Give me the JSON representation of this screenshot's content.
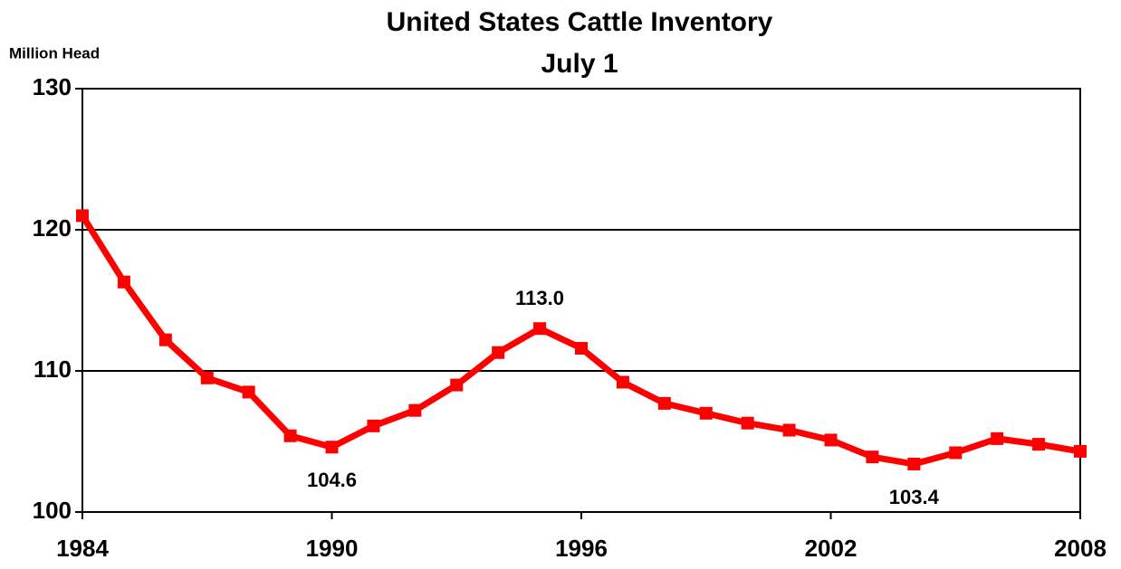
{
  "chart_data": {
    "type": "line",
    "title": "United States Cattle Inventory",
    "subtitle": "July 1",
    "y_label": "Million Head",
    "x": [
      1984,
      1985,
      1986,
      1987,
      1988,
      1989,
      1990,
      1991,
      1992,
      1993,
      1994,
      1995,
      1996,
      1997,
      1998,
      1999,
      2000,
      2001,
      2002,
      2003,
      2004,
      2005,
      2006,
      2007,
      2008
    ],
    "series": [
      {
        "name": "Cattle inventory",
        "color": "#ff0000",
        "values": [
          121.0,
          116.3,
          112.2,
          109.5,
          108.5,
          105.4,
          104.6,
          106.1,
          107.2,
          109.0,
          111.3,
          113.0,
          111.6,
          109.2,
          107.7,
          107.0,
          106.3,
          105.8,
          105.1,
          103.9,
          103.4,
          104.2,
          105.2,
          104.8,
          104.3
        ],
        "value_labels": [
          null,
          null,
          null,
          null,
          null,
          null,
          "104.6",
          null,
          null,
          null,
          null,
          "113.0",
          null,
          null,
          null,
          null,
          null,
          null,
          null,
          null,
          "103.4",
          null,
          null,
          null,
          null
        ]
      }
    ],
    "xlim": [
      1984,
      2008
    ],
    "xticks": [
      1984,
      1990,
      1996,
      2002,
      2008
    ],
    "ylim": [
      100,
      130
    ],
    "yticks": [
      100,
      110,
      120,
      130
    ],
    "grid": true
  }
}
